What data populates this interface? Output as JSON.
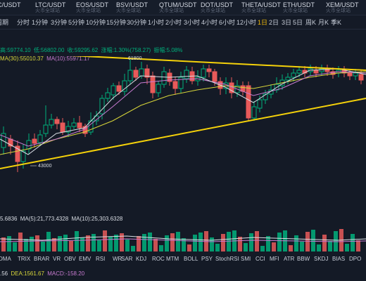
{
  "tickers": [
    {
      "symbol": "C/USDT",
      "sub": ""
    },
    {
      "symbol": "LTC/USDT",
      "sub": "火币全球站"
    },
    {
      "symbol": "EOS/USDT",
      "sub": "火币全球站"
    },
    {
      "symbol": "BSV/USDT",
      "sub": "火币全球站"
    },
    {
      "symbol": "QTUM/USDT",
      "sub": "火币全球站"
    },
    {
      "symbol": "DOT/USDT",
      "sub": "火币全球站"
    },
    {
      "symbol": "THETA/USDT",
      "sub": "火币全球站"
    },
    {
      "symbol": "ETH/USDT",
      "sub": "火币全球站"
    },
    {
      "symbol": "XEM/USDT",
      "sub": "火币全球站"
    }
  ],
  "intervals": [
    {
      "label": "周期",
      "active": false
    },
    {
      "label": "分时",
      "active": false
    },
    {
      "label": "1分钟",
      "active": false
    },
    {
      "label": "3分钟",
      "active": false
    },
    {
      "label": "5分钟",
      "active": false
    },
    {
      "label": "10分钟",
      "active": false
    },
    {
      "label": "15分钟",
      "active": false
    },
    {
      "label": "30分钟",
      "active": false
    },
    {
      "label": "1小时",
      "active": false
    },
    {
      "label": "2小时",
      "active": false
    },
    {
      "label": "3小时",
      "active": false
    },
    {
      "label": "4小时",
      "active": false
    },
    {
      "label": "6小时",
      "active": false
    },
    {
      "label": "12小时",
      "active": false
    },
    {
      "label": "1日",
      "active": true
    },
    {
      "label": "2日",
      "active": false
    },
    {
      "label": "3日",
      "active": false
    },
    {
      "label": "5日",
      "active": false
    },
    {
      "label": "周K",
      "active": false
    },
    {
      "label": "月K",
      "active": false
    },
    {
      "label": "季K",
      "active": false
    }
  ],
  "price_info": {
    "open": "高:59774.10",
    "low": "低:56802.00",
    "close": "收:59295.62",
    "change": "涨幅:1.30%(758.27)",
    "amplitude": "振幅:5.08%"
  },
  "ma_info": {
    "ma30": "MA(30):55010.37",
    "ma10": "MA(10):55971.17"
  },
  "volume_info": {
    "vol": "5.6836",
    "ma5": "MA(5):21,773.4328",
    "ma10": "MA(10):25,303.6328"
  },
  "macd_info": {
    "val1": ".56",
    "dea": "DEA:1561.67",
    "macd": "MACD:-158.20"
  },
  "annotations": {
    "high_label": "61800",
    "low_label": "43000"
  },
  "indicators": [
    "DMA",
    "TRIX",
    "BRAR",
    "VR",
    "OBV",
    "EMV",
    "RSI",
    "WR",
    "SAR",
    "KDJ",
    "ROC",
    "MTM",
    "BOLL",
    "PSY",
    "StochRSI",
    "SMI",
    "CCI",
    "MFI",
    "ATR",
    "BBW",
    "SKDJ",
    "BIAS",
    "DPO"
  ],
  "colors": {
    "up": "#00b07c",
    "down": "#e85a5a",
    "active": "#f0b90b",
    "trendline": "#f5d20a",
    "ma_yellow": "#d8d63a",
    "ma_purple": "#c77bd0",
    "ma_white": "#d9dde4",
    "background": "#141a26"
  }
}
